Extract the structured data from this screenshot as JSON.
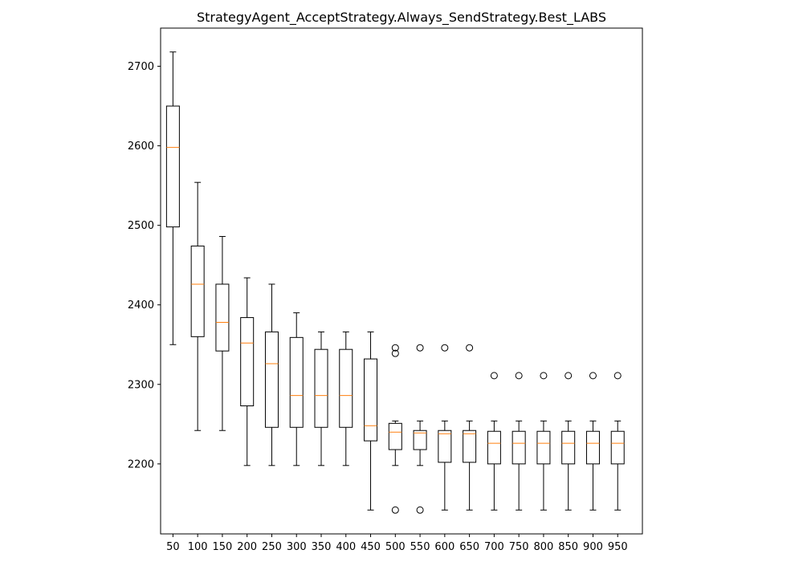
{
  "chart_data": {
    "type": "box",
    "title": "StrategyAgent_AcceptStrategy.Always_SendStrategy.Best_LABS",
    "xlabel": "",
    "ylabel": "",
    "categories": [
      "50",
      "100",
      "150",
      "200",
      "250",
      "300",
      "350",
      "400",
      "450",
      "500",
      "550",
      "600",
      "650",
      "700",
      "750",
      "800",
      "850",
      "900",
      "950"
    ],
    "y_ticks": [
      "2200",
      "2300",
      "2400",
      "2500",
      "2600",
      "2700"
    ],
    "ylim": [
      2112,
      2748
    ],
    "grid": false,
    "colors": {
      "box": "#000000",
      "median": "#ff7f0e",
      "flier": "#000000"
    },
    "boxes": [
      {
        "x": "50",
        "whislo": 2350,
        "q1": 2498,
        "med": 2598,
        "q3": 2650,
        "whishi": 2718,
        "fliers": []
      },
      {
        "x": "100",
        "whislo": 2242,
        "q1": 2360,
        "med": 2426,
        "q3": 2474,
        "whishi": 2554,
        "fliers": []
      },
      {
        "x": "150",
        "whislo": 2242,
        "q1": 2342,
        "med": 2378,
        "q3": 2426,
        "whishi": 2486,
        "fliers": []
      },
      {
        "x": "200",
        "whislo": 2198,
        "q1": 2273,
        "med": 2352,
        "q3": 2384,
        "whishi": 2434,
        "fliers": []
      },
      {
        "x": "250",
        "whislo": 2198,
        "q1": 2246,
        "med": 2326,
        "q3": 2366,
        "whishi": 2426,
        "fliers": []
      },
      {
        "x": "300",
        "whislo": 2198,
        "q1": 2246,
        "med": 2286,
        "q3": 2359,
        "whishi": 2390,
        "fliers": []
      },
      {
        "x": "350",
        "whislo": 2198,
        "q1": 2246,
        "med": 2286,
        "q3": 2344,
        "whishi": 2366,
        "fliers": []
      },
      {
        "x": "400",
        "whislo": 2198,
        "q1": 2246,
        "med": 2286,
        "q3": 2344,
        "whishi": 2366,
        "fliers": []
      },
      {
        "x": "450",
        "whislo": 2142,
        "q1": 2229,
        "med": 2248,
        "q3": 2332,
        "whishi": 2366,
        "fliers": []
      },
      {
        "x": "500",
        "whislo": 2198,
        "q1": 2218,
        "med": 2240,
        "q3": 2251,
        "whishi": 2254,
        "fliers": [
          2142,
          2339,
          2346
        ]
      },
      {
        "x": "550",
        "whislo": 2198,
        "q1": 2218,
        "med": 2239,
        "q3": 2242,
        "whishi": 2254,
        "fliers": [
          2142,
          2346
        ]
      },
      {
        "x": "600",
        "whislo": 2142,
        "q1": 2202,
        "med": 2238,
        "q3": 2242,
        "whishi": 2254,
        "fliers": [
          2346
        ]
      },
      {
        "x": "650",
        "whislo": 2142,
        "q1": 2202,
        "med": 2238,
        "q3": 2242,
        "whishi": 2254,
        "fliers": [
          2346
        ]
      },
      {
        "x": "700",
        "whislo": 2142,
        "q1": 2200,
        "med": 2226,
        "q3": 2241,
        "whishi": 2254,
        "fliers": [
          2311
        ]
      },
      {
        "x": "750",
        "whislo": 2142,
        "q1": 2200,
        "med": 2226,
        "q3": 2241,
        "whishi": 2254,
        "fliers": [
          2311
        ]
      },
      {
        "x": "800",
        "whislo": 2142,
        "q1": 2200,
        "med": 2226,
        "q3": 2241,
        "whishi": 2254,
        "fliers": [
          2311
        ]
      },
      {
        "x": "850",
        "whislo": 2142,
        "q1": 2200,
        "med": 2226,
        "q3": 2241,
        "whishi": 2254,
        "fliers": [
          2311
        ]
      },
      {
        "x": "900",
        "whislo": 2142,
        "q1": 2200,
        "med": 2226,
        "q3": 2241,
        "whishi": 2254,
        "fliers": [
          2311
        ]
      },
      {
        "x": "950",
        "whislo": 2142,
        "q1": 2200,
        "med": 2226,
        "q3": 2241,
        "whishi": 2254,
        "fliers": [
          2311
        ]
      }
    ]
  }
}
